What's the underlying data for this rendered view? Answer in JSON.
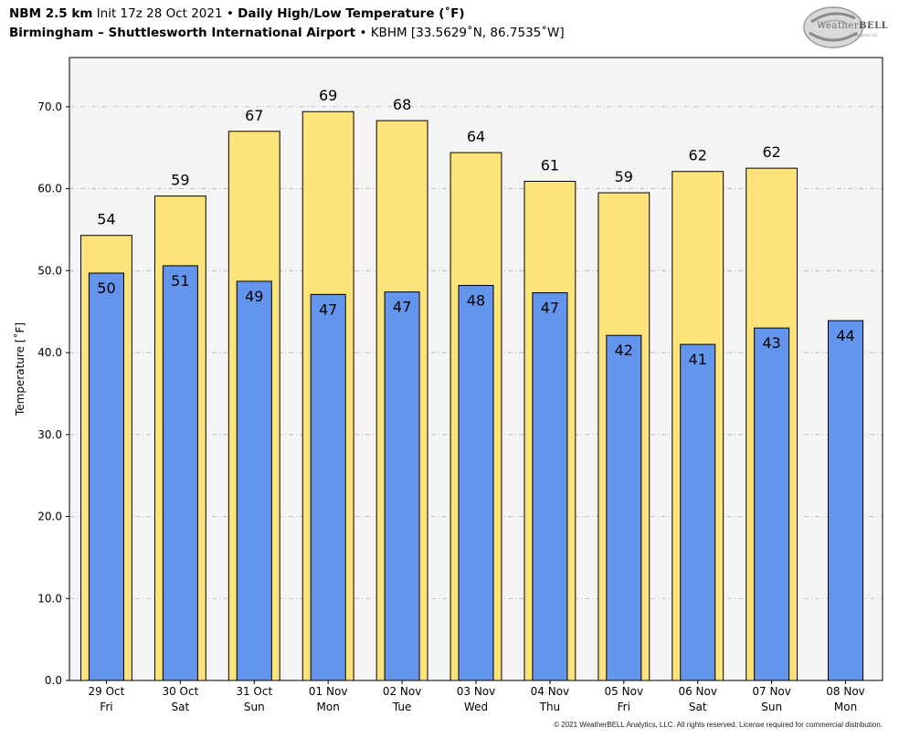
{
  "header": {
    "model": "NBM 2.5 km",
    "init": "Init 17z 28 Oct 2021",
    "sep1": "•",
    "product": "Daily High/Low Temperature (˚F)",
    "location": "Birmingham – Shuttlesworth International Airport",
    "sep2": "•",
    "station": "KBHM [33.5629˚N, 86.7535˚W]"
  },
  "logo": {
    "brand_a": "Weather",
    "brand_b": "BELL",
    "brand_sub": "Analytics LLC"
  },
  "footer": {
    "copyright": "© 2021 WeatherBELL Analytics, LLC. All rights reserved. License required for commercial distribution."
  },
  "colors": {
    "high_bar": "#fee37a",
    "low_bar": "#6495ec",
    "plot_bg": "#f4f4f4",
    "grid": "#b0b0b0"
  },
  "chart_data": {
    "type": "bar",
    "ylabel": "Temperature [˚F]",
    "ylim": [
      0,
      76
    ],
    "yticks": [
      "0.0",
      "10.0",
      "20.0",
      "30.0",
      "40.0",
      "50.0",
      "60.0",
      "70.0"
    ],
    "grid": true,
    "categories": [
      {
        "date": "29 Oct",
        "day": "Fri"
      },
      {
        "date": "30 Oct",
        "day": "Sat"
      },
      {
        "date": "31 Oct",
        "day": "Sun"
      },
      {
        "date": "01 Nov",
        "day": "Mon"
      },
      {
        "date": "02 Nov",
        "day": "Tue"
      },
      {
        "date": "03 Nov",
        "day": "Wed"
      },
      {
        "date": "04 Nov",
        "day": "Thu"
      },
      {
        "date": "05 Nov",
        "day": "Fri"
      },
      {
        "date": "06 Nov",
        "day": "Sat"
      },
      {
        "date": "07 Nov",
        "day": "Sun"
      },
      {
        "date": "08 Nov",
        "day": "Mon"
      }
    ],
    "series": [
      {
        "name": "High",
        "values": [
          54.3,
          59.1,
          67.0,
          69.4,
          68.3,
          64.4,
          60.9,
          59.5,
          62.1,
          62.5,
          null
        ],
        "labels": [
          "54",
          "59",
          "67",
          "69",
          "68",
          "64",
          "61",
          "59",
          "62",
          "62",
          ""
        ]
      },
      {
        "name": "Low",
        "values": [
          49.7,
          50.6,
          48.7,
          47.1,
          47.4,
          48.2,
          47.3,
          42.1,
          41.0,
          43.0,
          43.9
        ],
        "labels": [
          "50",
          "51",
          "49",
          "47",
          "47",
          "48",
          "47",
          "42",
          "41",
          "43",
          "44"
        ]
      }
    ]
  }
}
